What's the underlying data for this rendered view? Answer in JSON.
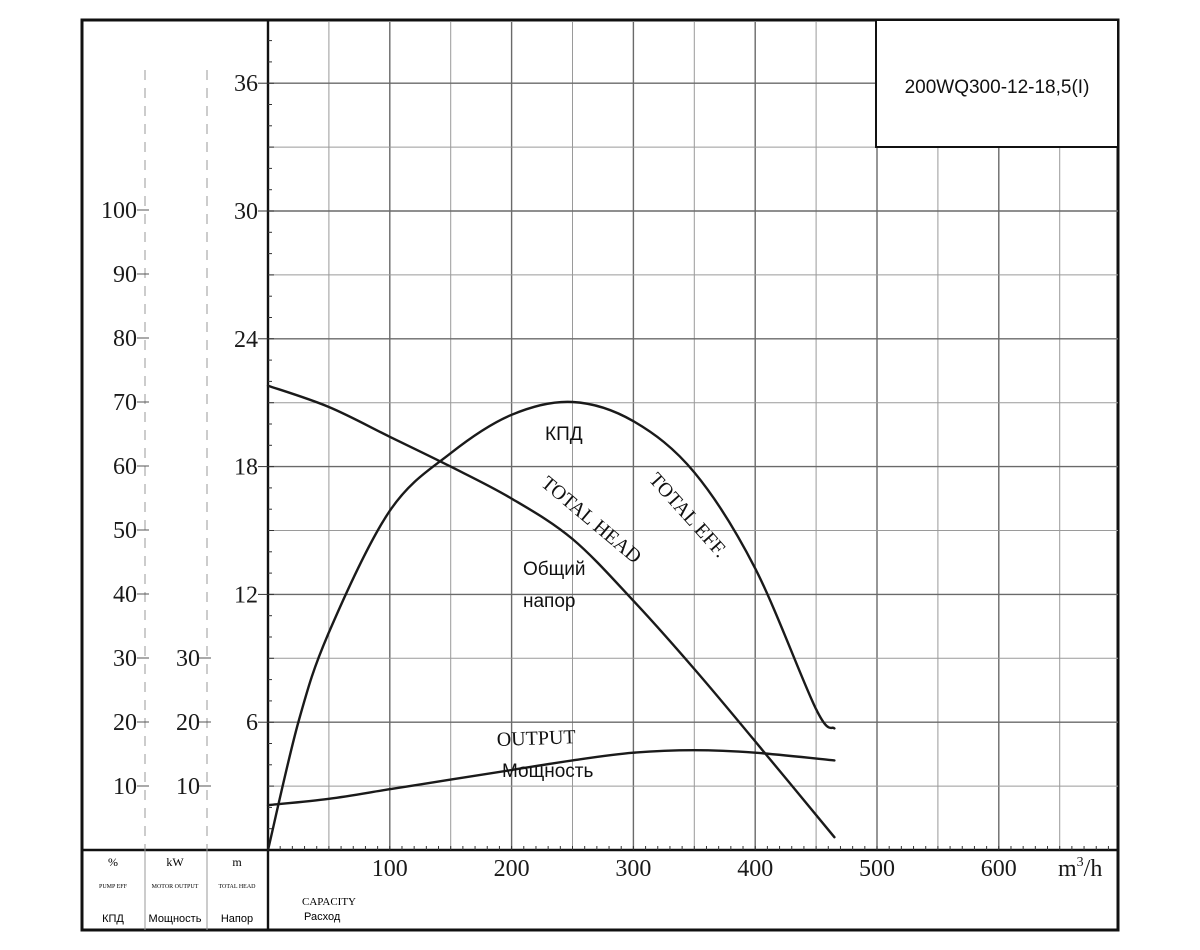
{
  "chart_data": {
    "type": "line",
    "title": "200WQ300-12-18,5(I)",
    "x_axis": {
      "label": "m³/h",
      "label_base": "m",
      "label_sup": "3",
      "label_tail": "/h",
      "name_en": "CAPACITY",
      "name_ru": "Расход",
      "ticks": [
        100,
        200,
        300,
        400,
        500,
        600
      ],
      "range": [
        0,
        700
      ]
    },
    "y_axes": {
      "efficiency": {
        "unit": "%",
        "name_en": "PUMP EFF",
        "name_ru": "КПД",
        "ticks": [
          10,
          20,
          30,
          40,
          50,
          60,
          70,
          80,
          90,
          100
        ],
        "range": [
          0,
          100
        ]
      },
      "power": {
        "unit": "kW",
        "name_en": "MOTOR OUTPUT",
        "name_ru": "Мощность",
        "ticks": [
          10,
          20,
          30
        ],
        "range": [
          0,
          100
        ]
      },
      "head": {
        "unit": "m",
        "name_en": "TOTAL HEAD",
        "name_ru": "Напор",
        "ticks": [
          6,
          12,
          18,
          24,
          30,
          36
        ],
        "range": [
          0,
          39
        ]
      }
    },
    "series": [
      {
        "name": "TOTAL HEAD",
        "name_ru": "Общий напор",
        "axis": "head",
        "x": [
          0,
          50,
          100,
          150,
          200,
          250,
          300,
          350,
          400,
          465
        ],
        "y": [
          21.8,
          20.8,
          19.4,
          18.0,
          16.5,
          14.6,
          11.7,
          8.5,
          5.1,
          0.6
        ]
      },
      {
        "name": "TOTAL EFF.",
        "name_ru": "КПД",
        "axis": "efficiency",
        "x": [
          0,
          25,
          50,
          100,
          150,
          200,
          250,
          300,
          350,
          400,
          450,
          465
        ],
        "y": [
          0,
          20,
          34,
          53,
          62,
          68,
          70,
          67,
          59,
          44,
          22,
          19
        ]
      },
      {
        "name": "OUTPUT",
        "name_ru": "Мощность",
        "axis": "power",
        "x": [
          0,
          50,
          100,
          150,
          200,
          250,
          300,
          350,
          400,
          465
        ],
        "y": [
          7,
          8,
          9.5,
          11,
          12.5,
          14,
          15.2,
          15.6,
          15.2,
          14
        ]
      }
    ]
  }
}
